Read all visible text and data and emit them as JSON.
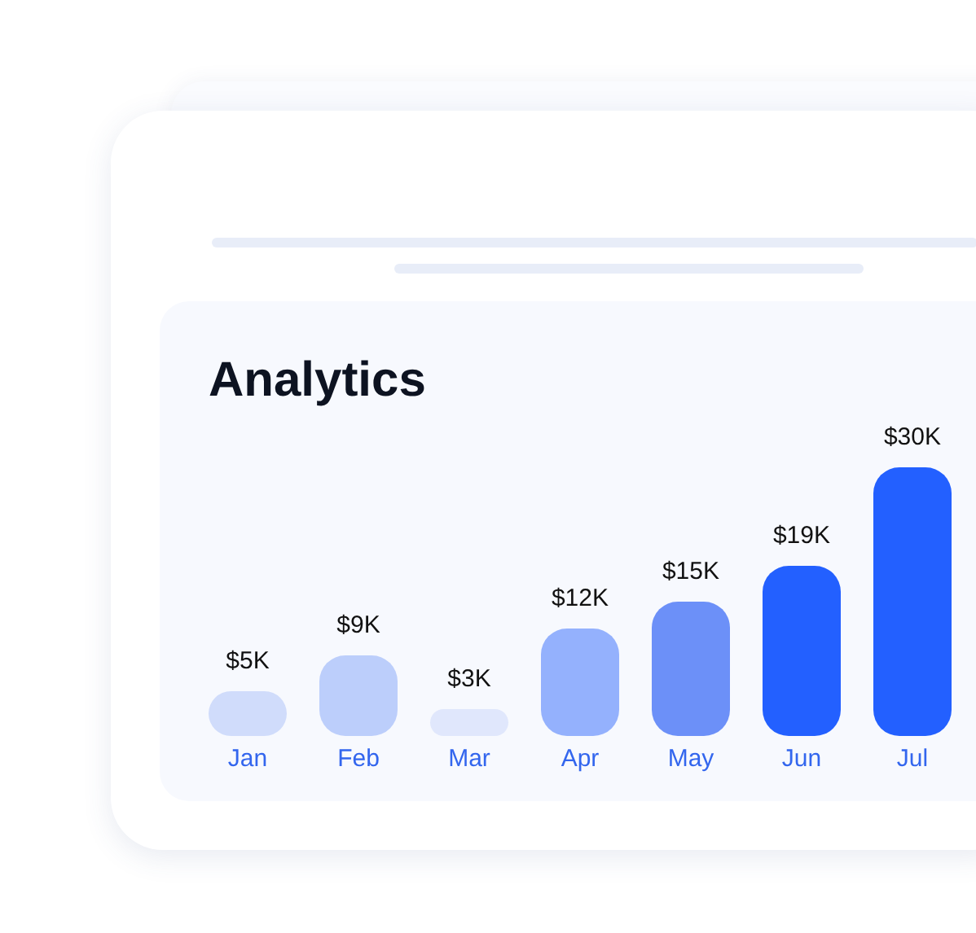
{
  "chart_data": {
    "type": "bar",
    "title": "Analytics",
    "categories": [
      "Jan",
      "Feb",
      "Mar",
      "Apr",
      "May",
      "Jun",
      "Jul"
    ],
    "values": [
      5,
      9,
      3,
      12,
      15,
      19,
      30
    ],
    "value_labels": [
      "$5K",
      "$9K",
      "$3K",
      "$12K",
      "$15K",
      "$19K",
      "$30K"
    ],
    "colors": [
      "#d0dcfb",
      "#bccefb",
      "#e0e7fc",
      "#94b1fd",
      "#6c90f8",
      "#2360ff",
      "#2360ff"
    ],
    "grid": false,
    "legend": false
  }
}
